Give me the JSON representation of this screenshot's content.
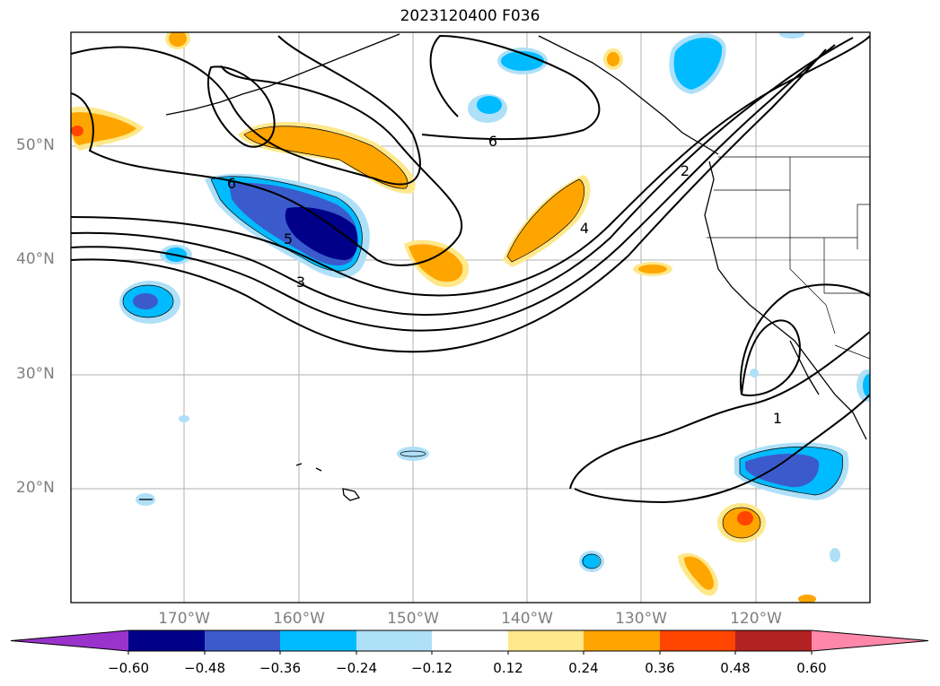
{
  "title": "2023120400 F036",
  "latitude_labels": [
    "50°N",
    "40°N",
    "30°N",
    "20°N"
  ],
  "longitude_labels": [
    "170°W",
    "160°W",
    "150°W",
    "140°W",
    "130°W",
    "120°W"
  ],
  "contour_labels": [
    "6",
    "6",
    "5",
    "3",
    "4",
    "2",
    "1"
  ],
  "colorbar": {
    "colors": [
      "#9933cc",
      "#000088",
      "#3b5bcc",
      "#00bbff",
      "#aee0f8",
      "#ffffff",
      "#fee88a",
      "#ffa500",
      "#ff4500",
      "#b22222",
      "#ff88aa"
    ],
    "tick_labels": [
      "−0.60",
      "−0.48",
      "−0.36",
      "−0.24",
      "−0.12",
      "0.12",
      "0.24",
      "0.36",
      "0.48",
      "0.60"
    ]
  }
}
